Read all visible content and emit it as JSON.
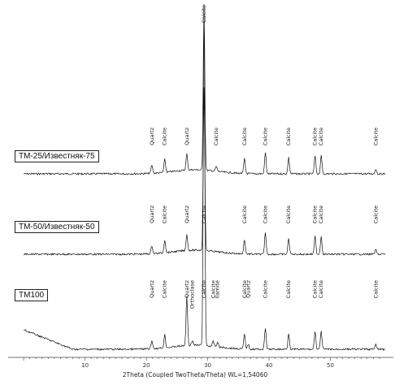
{
  "chart_data": {
    "type": "line",
    "xlabel": "2Theta (Coupled TwoTheta/Theta) WL=1,54060",
    "xlim": [
      -2,
      60
    ],
    "x_ticks": [
      10,
      20,
      30,
      40,
      50
    ],
    "grid": false,
    "series": [
      {
        "name": "TM-25/Известняк-75",
        "peaks": [
          {
            "x": 20.9,
            "label": "Quartz"
          },
          {
            "x": 23.0,
            "label": "Calcite"
          },
          {
            "x": 26.6,
            "label": "Quartz"
          },
          {
            "x": 29.4,
            "label": "Calcite"
          },
          {
            "x": 31.4,
            "label": "Calcite"
          },
          {
            "x": 36.0,
            "label": "Calcite"
          },
          {
            "x": 39.4,
            "label": "Calcite"
          },
          {
            "x": 43.2,
            "label": "Calcite"
          },
          {
            "x": 47.5,
            "label": "Calcite"
          },
          {
            "x": 48.5,
            "label": "Calcite"
          },
          {
            "x": 57.4,
            "label": "Calcite"
          }
        ]
      },
      {
        "name": "TM-50/Известняк-50",
        "peaks": [
          {
            "x": 20.9,
            "label": "Quartz"
          },
          {
            "x": 23.0,
            "label": "Calcite"
          },
          {
            "x": 26.6,
            "label": "Quartz"
          },
          {
            "x": 29.4,
            "label": "Calcite"
          },
          {
            "x": 36.0,
            "label": "Calcite"
          },
          {
            "x": 39.4,
            "label": "Calcite"
          },
          {
            "x": 43.2,
            "label": "Calcite"
          },
          {
            "x": 47.5,
            "label": "Calcite"
          },
          {
            "x": 48.5,
            "label": "Calcite"
          },
          {
            "x": 57.4,
            "label": "Calcite"
          }
        ]
      },
      {
        "name": "TM100",
        "peaks": [
          {
            "x": 20.9,
            "label": "Quartz"
          },
          {
            "x": 23.0,
            "label": "Calcite"
          },
          {
            "x": 26.6,
            "label": "Quartz"
          },
          {
            "x": 27.5,
            "label": "Orthoclase"
          },
          {
            "x": 29.4,
            "label": "Calcite"
          },
          {
            "x": 30.9,
            "label": "Calcite"
          },
          {
            "x": 31.6,
            "label": "Ilamite"
          },
          {
            "x": 36.0,
            "label": "Calcite"
          },
          {
            "x": 36.6,
            "label": "Quartz"
          },
          {
            "x": 39.4,
            "label": "Calcite"
          },
          {
            "x": 43.2,
            "label": "Calcite"
          },
          {
            "x": 47.5,
            "label": "Calcite"
          },
          {
            "x": 48.5,
            "label": "Calcite"
          },
          {
            "x": 57.4,
            "label": "Calcite"
          }
        ]
      }
    ]
  }
}
